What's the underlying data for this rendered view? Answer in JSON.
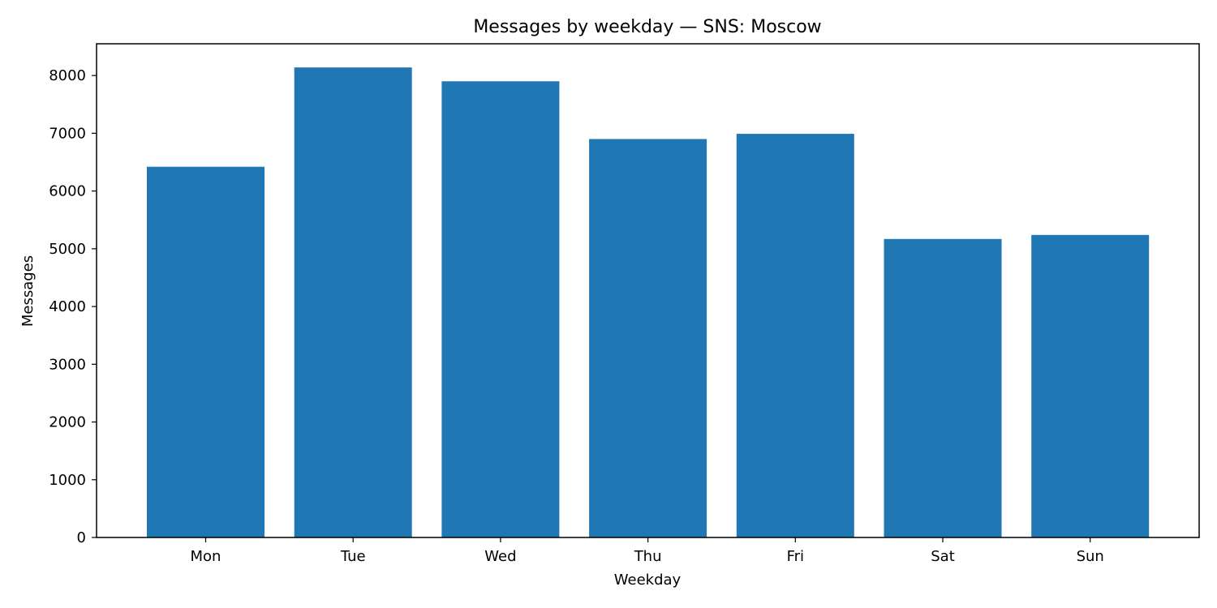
{
  "chart_data": {
    "type": "bar",
    "title": "Messages by weekday — SNS: Moscow",
    "xlabel": "Weekday",
    "ylabel": "Messages",
    "categories": [
      "Mon",
      "Tue",
      "Wed",
      "Thu",
      "Fri",
      "Sat",
      "Sun"
    ],
    "values": [
      6420,
      8140,
      7900,
      6900,
      6990,
      5170,
      5240
    ],
    "ylim": [
      0,
      8550
    ],
    "yticks": [
      0,
      1000,
      2000,
      3000,
      4000,
      5000,
      6000,
      7000,
      8000
    ],
    "grid": false,
    "bar_color": "#1f77b4"
  }
}
